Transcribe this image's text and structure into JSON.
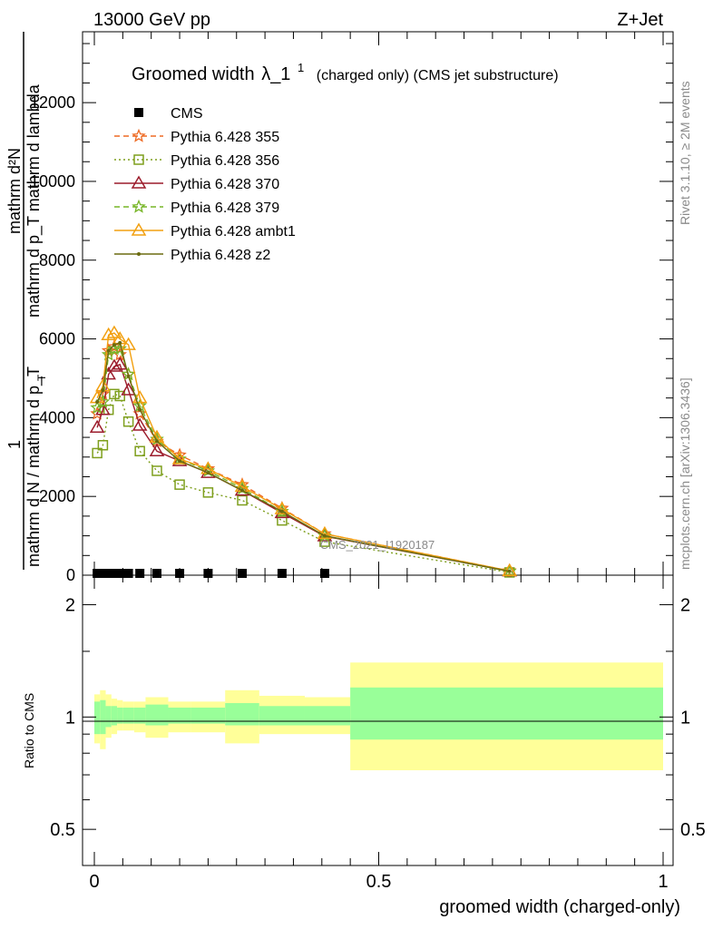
{
  "header": {
    "energy": "13000 GeV pp",
    "process": "Z+Jet",
    "title_main": "Groomed width",
    "title_lambda": "λ_1",
    "title_sup": "1",
    "title_suffix": "(charged only) (CMS jet substructure)",
    "rivet_label": "Rivet 3.1.10, ≥ 2M events",
    "mcplots_label": "mcplots.cern.ch [arXiv:1306.3436]",
    "watermark": "CMS_2021_I1920187"
  },
  "axes": {
    "top_ylabel_line1": "mathrm d²N",
    "top_ylabel_line2": "mathrm d p_T mathrm d lambda",
    "top_ylabel_line3": "1",
    "top_ylabel_line4": "mathrm d N / mathrm d p_T",
    "top_ylabel_sub": "T",
    "ratio_ylabel": "Ratio to CMS",
    "xlabel": "groomed width (charged-only)",
    "top_yticks": [
      "0",
      "2000",
      "4000",
      "6000",
      "8000",
      "10000",
      "12000"
    ],
    "ratio_yticks": [
      "0.5",
      "1",
      "2"
    ],
    "xticks": [
      "0",
      "0.5",
      "1"
    ]
  },
  "colors": {
    "cms": "#000000",
    "p355": "#ee6a23",
    "p356": "#7e9f1d",
    "p370": "#9c1c2c",
    "p379": "#77b527",
    "pambt1": "#f2a010",
    "pz2": "#6b6b10",
    "band_inner": "#99ff99",
    "band_outer": "#ffff99"
  },
  "chart_data": {
    "type": "line",
    "title": "Groomed width λ_1^1 (charged only) (CMS jet substructure)",
    "xlabel": "groomed width (charged-only)",
    "ylabel": "1/(mathrm d N / mathrm d p_T) mathrm d²N/(mathrm d p_T mathrm d lambda)",
    "xlim": [
      0,
      1
    ],
    "ylim": [
      0,
      13800
    ],
    "legend_position": "top-left",
    "x": [
      0.005,
      0.015,
      0.025,
      0.035,
      0.045,
      0.06,
      0.08,
      0.11,
      0.15,
      0.2,
      0.26,
      0.33,
      0.405,
      0.73
    ],
    "series": [
      {
        "name": "CMS",
        "marker": "square",
        "values": [
          0,
          0,
          0,
          0,
          0,
          0,
          0,
          0,
          0,
          0,
          0,
          0,
          0,
          null
        ]
      },
      {
        "name": "Pythia 6.428 355",
        "marker": "star",
        "dash": "dashed",
        "values": [
          4100,
          4600,
          5700,
          5800,
          5600,
          5100,
          4100,
          3400,
          3050,
          2700,
          2300,
          1700,
          1050,
          110
        ]
      },
      {
        "name": "Pythia 6.428 356",
        "marker": "open-square",
        "dash": "dotted",
        "values": [
          3100,
          3300,
          4200,
          4600,
          4550,
          3900,
          3150,
          2650,
          2300,
          2100,
          1900,
          1390,
          850,
          70
        ]
      },
      {
        "name": "Pythia 6.428 370",
        "marker": "open-triangle",
        "dash": "solid",
        "values": [
          3750,
          4200,
          5100,
          5300,
          5350,
          4700,
          3800,
          3150,
          2900,
          2600,
          2150,
          1580,
          990,
          100
        ]
      },
      {
        "name": "Pythia 6.428 379",
        "marker": "star",
        "dash": "dashed",
        "values": [
          4250,
          4400,
          5600,
          5750,
          5750,
          5100,
          4300,
          3450,
          2950,
          2650,
          2200,
          1620,
          1000,
          100
        ]
      },
      {
        "name": "Pythia 6.428 ambt1",
        "marker": "open-triangle",
        "dash": "solid",
        "values": [
          4500,
          4800,
          6100,
          6150,
          6000,
          5850,
          4500,
          3500,
          2950,
          2700,
          2250,
          1680,
          1050,
          110
        ]
      },
      {
        "name": "Pythia 6.428 z2",
        "marker": "dot",
        "dash": "solid",
        "values": [
          4400,
          4700,
          5700,
          5850,
          5900,
          5050,
          4200,
          3400,
          2900,
          2600,
          2150,
          1620,
          1000,
          100
        ]
      }
    ],
    "ratio": {
      "ylim": [
        0.4,
        2.4
      ],
      "bins": [
        {
          "x0": 0.0,
          "x1": 0.01,
          "inner": [
            0.9,
            1.1
          ],
          "outer": [
            0.85,
            1.15
          ]
        },
        {
          "x0": 0.01,
          "x1": 0.02,
          "inner": [
            0.9,
            1.11
          ],
          "outer": [
            0.82,
            1.18
          ]
        },
        {
          "x0": 0.02,
          "x1": 0.03,
          "inner": [
            0.94,
            1.07
          ],
          "outer": [
            0.88,
            1.15
          ]
        },
        {
          "x0": 0.03,
          "x1": 0.04,
          "inner": [
            0.95,
            1.07
          ],
          "outer": [
            0.9,
            1.12
          ]
        },
        {
          "x0": 0.04,
          "x1": 0.05,
          "inner": [
            0.96,
            1.06
          ],
          "outer": [
            0.92,
            1.11
          ]
        },
        {
          "x0": 0.05,
          "x1": 0.07,
          "inner": [
            0.96,
            1.06
          ],
          "outer": [
            0.92,
            1.1
          ]
        },
        {
          "x0": 0.07,
          "x1": 0.09,
          "inner": [
            0.96,
            1.06
          ],
          "outer": [
            0.91,
            1.1
          ]
        },
        {
          "x0": 0.09,
          "x1": 0.13,
          "inner": [
            0.95,
            1.08
          ],
          "outer": [
            0.88,
            1.13
          ]
        },
        {
          "x0": 0.13,
          "x1": 0.17,
          "inner": [
            0.96,
            1.06
          ],
          "outer": [
            0.91,
            1.1
          ]
        },
        {
          "x0": 0.17,
          "x1": 0.23,
          "inner": [
            0.96,
            1.06
          ],
          "outer": [
            0.91,
            1.1
          ]
        },
        {
          "x0": 0.23,
          "x1": 0.29,
          "inner": [
            0.95,
            1.09
          ],
          "outer": [
            0.85,
            1.18
          ]
        },
        {
          "x0": 0.29,
          "x1": 0.37,
          "inner": [
            0.95,
            1.07
          ],
          "outer": [
            0.9,
            1.14
          ]
        },
        {
          "x0": 0.37,
          "x1": 0.45,
          "inner": [
            0.95,
            1.07
          ],
          "outer": [
            0.9,
            1.13
          ]
        },
        {
          "x0": 0.45,
          "x1": 1.0,
          "inner": [
            0.87,
            1.2
          ],
          "outer": [
            0.72,
            1.4
          ]
        }
      ]
    }
  }
}
